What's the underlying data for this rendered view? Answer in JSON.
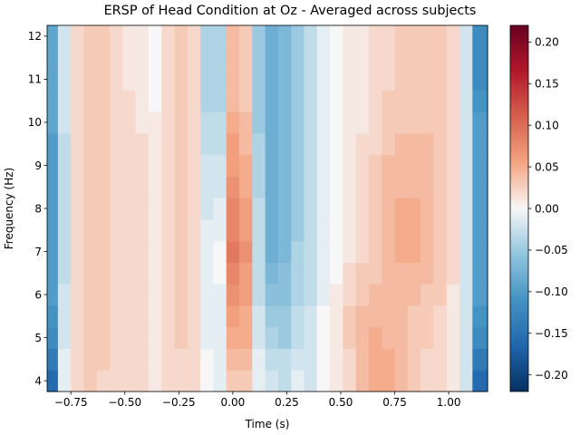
{
  "chart_data": {
    "type": "heatmap",
    "title": "ERSP of Head Condition at Oz - Averaged across subjects",
    "xlabel": "Time (s)",
    "ylabel": "Frequency (Hz)",
    "xlim": [
      -0.86,
      1.18
    ],
    "ylim": [
      3.75,
      12.25
    ],
    "x_ticks": [
      -0.75,
      -0.5,
      -0.25,
      0.0,
      0.25,
      0.5,
      0.75,
      1.0
    ],
    "x_tick_labels": [
      "−0.75",
      "−0.50",
      "−0.25",
      "0.00",
      "0.25",
      "0.50",
      "0.75",
      "1.00"
    ],
    "y_ticks": [
      4,
      5,
      6,
      7,
      8,
      9,
      10,
      11,
      12
    ],
    "y_tick_labels": [
      "4",
      "5",
      "6",
      "7",
      "8",
      "9",
      "10",
      "11",
      "12"
    ],
    "colorbar": {
      "colormap": "RdBu_r",
      "vmin": -0.22,
      "vmax": 0.22,
      "ticks": [
        -0.2,
        -0.15,
        -0.1,
        -0.05,
        0.0,
        0.05,
        0.1,
        0.15,
        0.2
      ],
      "tick_labels": [
        "−0.20",
        "−0.15",
        "−0.10",
        "−0.05",
        "0.00",
        "0.05",
        "0.10",
        "0.15",
        "0.20"
      ]
    },
    "frequencies": [
      4,
      4.5,
      5,
      5.5,
      6,
      6.5,
      7,
      7.5,
      8,
      8.5,
      9,
      9.5,
      10,
      10.5,
      11,
      11.5,
      12
    ],
    "times": [
      -0.84,
      -0.78,
      -0.72,
      -0.66,
      -0.6,
      -0.54,
      -0.48,
      -0.42,
      -0.36,
      -0.3,
      -0.24,
      -0.18,
      -0.12,
      -0.06,
      0.0,
      0.06,
      0.12,
      0.18,
      0.24,
      0.3,
      0.36,
      0.42,
      0.48,
      0.54,
      0.6,
      0.66,
      0.72,
      0.78,
      0.84,
      0.9,
      0.96,
      1.02,
      1.08,
      1.14
    ],
    "values": [
      [
        -0.16,
        -0.01,
        0.02,
        0.03,
        0.02,
        0.02,
        0.02,
        0.02,
        0.01,
        0.02,
        0.02,
        0.02,
        0.0,
        -0.01,
        0.03,
        0.03,
        -0.01,
        -0.02,
        -0.03,
        -0.01,
        -0.02,
        0.0,
        0.01,
        0.02,
        0.04,
        0.05,
        0.05,
        0.04,
        0.03,
        0.02,
        0.02,
        0.01,
        -0.02,
        -0.16
      ],
      [
        -0.14,
        -0.01,
        0.02,
        0.03,
        0.03,
        0.02,
        0.02,
        0.02,
        0.01,
        0.02,
        0.02,
        0.02,
        0.0,
        -0.01,
        0.04,
        0.04,
        -0.01,
        -0.03,
        -0.03,
        -0.02,
        -0.02,
        0.0,
        0.01,
        0.02,
        0.04,
        0.05,
        0.05,
        0.04,
        0.03,
        0.02,
        0.02,
        0.01,
        -0.02,
        -0.14
      ],
      [
        -0.12,
        -0.02,
        0.02,
        0.03,
        0.03,
        0.02,
        0.02,
        0.02,
        0.01,
        0.02,
        0.03,
        0.02,
        -0.01,
        -0.01,
        0.05,
        0.05,
        -0.02,
        -0.04,
        -0.05,
        -0.03,
        -0.02,
        0.0,
        0.01,
        0.03,
        0.04,
        0.05,
        0.04,
        0.04,
        0.03,
        0.03,
        0.02,
        0.01,
        -0.02,
        -0.12
      ],
      [
        -0.11,
        -0.02,
        0.02,
        0.03,
        0.03,
        0.02,
        0.02,
        0.02,
        0.01,
        0.02,
        0.03,
        0.02,
        -0.01,
        -0.01,
        0.06,
        0.05,
        -0.02,
        -0.05,
        -0.05,
        -0.03,
        -0.02,
        0.0,
        0.01,
        0.03,
        0.04,
        0.04,
        0.04,
        0.04,
        0.03,
        0.03,
        0.02,
        0.01,
        -0.02,
        -0.11
      ],
      [
        -0.1,
        -0.02,
        0.02,
        0.03,
        0.03,
        0.02,
        0.02,
        0.02,
        0.01,
        0.02,
        0.03,
        0.02,
        -0.01,
        -0.01,
        0.07,
        0.06,
        -0.03,
        -0.06,
        -0.06,
        -0.04,
        -0.03,
        -0.01,
        0.01,
        0.02,
        0.03,
        0.04,
        0.04,
        0.04,
        0.04,
        0.03,
        0.03,
        0.01,
        -0.02,
        -0.1
      ],
      [
        -0.1,
        -0.03,
        0.02,
        0.03,
        0.03,
        0.02,
        0.02,
        0.02,
        0.01,
        0.02,
        0.03,
        0.02,
        -0.01,
        0.0,
        0.08,
        0.06,
        -0.03,
        -0.07,
        -0.06,
        -0.04,
        -0.03,
        -0.01,
        0.0,
        0.02,
        0.03,
        0.03,
        0.04,
        0.04,
        0.04,
        0.04,
        0.03,
        0.02,
        -0.02,
        -0.1
      ],
      [
        -0.1,
        -0.03,
        0.02,
        0.03,
        0.03,
        0.02,
        0.02,
        0.02,
        0.01,
        0.02,
        0.03,
        0.02,
        -0.01,
        0.0,
        0.09,
        0.07,
        -0.03,
        -0.08,
        -0.07,
        -0.04,
        -0.03,
        -0.01,
        0.0,
        0.01,
        0.02,
        0.03,
        0.04,
        0.05,
        0.05,
        0.04,
        0.03,
        0.02,
        -0.02,
        -0.1
      ],
      [
        -0.1,
        -0.03,
        0.02,
        0.03,
        0.03,
        0.02,
        0.02,
        0.02,
        0.01,
        0.02,
        0.03,
        0.02,
        -0.01,
        -0.01,
        0.08,
        0.06,
        -0.03,
        -0.08,
        -0.07,
        -0.05,
        -0.03,
        -0.01,
        0.0,
        0.01,
        0.02,
        0.03,
        0.04,
        0.05,
        0.05,
        0.04,
        0.03,
        0.02,
        -0.02,
        -0.1
      ],
      [
        -0.1,
        -0.03,
        0.02,
        0.03,
        0.03,
        0.02,
        0.02,
        0.02,
        0.01,
        0.02,
        0.03,
        0.02,
        -0.02,
        -0.01,
        0.08,
        0.06,
        -0.03,
        -0.08,
        -0.07,
        -0.05,
        -0.03,
        -0.01,
        0.0,
        0.01,
        0.02,
        0.03,
        0.04,
        0.05,
        0.05,
        0.04,
        0.03,
        0.02,
        -0.02,
        -0.1
      ],
      [
        -0.1,
        -0.03,
        0.02,
        0.03,
        0.03,
        0.02,
        0.02,
        0.02,
        0.01,
        0.02,
        0.03,
        0.02,
        -0.02,
        -0.02,
        0.07,
        0.05,
        -0.04,
        -0.08,
        -0.07,
        -0.05,
        -0.03,
        -0.01,
        0.0,
        0.01,
        0.02,
        0.03,
        0.04,
        0.04,
        0.04,
        0.04,
        0.03,
        0.02,
        -0.02,
        -0.1
      ],
      [
        -0.1,
        -0.03,
        0.02,
        0.03,
        0.03,
        0.02,
        0.02,
        0.02,
        0.01,
        0.02,
        0.03,
        0.02,
        -0.02,
        -0.02,
        0.06,
        0.05,
        -0.04,
        -0.08,
        -0.07,
        -0.05,
        -0.03,
        -0.01,
        0.0,
        0.01,
        0.02,
        0.03,
        0.04,
        0.04,
        0.04,
        0.04,
        0.03,
        0.02,
        -0.02,
        -0.1
      ],
      [
        -0.1,
        -0.03,
        0.02,
        0.03,
        0.03,
        0.02,
        0.02,
        0.02,
        0.01,
        0.02,
        0.03,
        0.02,
        -0.03,
        -0.03,
        0.06,
        0.04,
        -0.04,
        -0.08,
        -0.07,
        -0.05,
        -0.03,
        -0.01,
        0.0,
        0.01,
        0.02,
        0.02,
        0.03,
        0.04,
        0.04,
        0.04,
        0.03,
        0.02,
        -0.02,
        -0.1
      ],
      [
        -0.09,
        -0.02,
        0.02,
        0.03,
        0.03,
        0.02,
        0.02,
        0.01,
        0.01,
        0.02,
        0.03,
        0.02,
        -0.03,
        -0.03,
        0.05,
        0.04,
        -0.05,
        -0.08,
        -0.07,
        -0.05,
        -0.03,
        -0.01,
        0.0,
        0.01,
        0.01,
        0.02,
        0.03,
        0.03,
        0.03,
        0.03,
        0.03,
        0.02,
        -0.02,
        -0.1
      ],
      [
        -0.09,
        -0.02,
        0.02,
        0.03,
        0.03,
        0.02,
        0.02,
        0.01,
        0.0,
        0.02,
        0.03,
        0.02,
        -0.04,
        -0.04,
        0.04,
        0.03,
        -0.05,
        -0.08,
        -0.07,
        -0.05,
        -0.03,
        -0.01,
        0.0,
        0.01,
        0.01,
        0.02,
        0.03,
        0.03,
        0.03,
        0.03,
        0.03,
        0.02,
        -0.02,
        -0.11
      ],
      [
        -0.09,
        -0.02,
        0.02,
        0.03,
        0.03,
        0.02,
        0.01,
        0.01,
        0.0,
        0.02,
        0.03,
        0.02,
        -0.04,
        -0.04,
        0.04,
        0.03,
        -0.05,
        -0.08,
        -0.07,
        -0.05,
        -0.03,
        -0.01,
        0.0,
        0.01,
        0.01,
        0.02,
        0.02,
        0.03,
        0.03,
        0.03,
        0.03,
        0.02,
        -0.02,
        -0.12
      ],
      [
        -0.09,
        -0.02,
        0.02,
        0.03,
        0.03,
        0.02,
        0.01,
        0.01,
        0.0,
        0.02,
        0.03,
        0.02,
        -0.04,
        -0.04,
        0.04,
        0.03,
        -0.05,
        -0.08,
        -0.07,
        -0.05,
        -0.03,
        -0.01,
        0.0,
        0.01,
        0.01,
        0.02,
        0.02,
        0.03,
        0.03,
        0.03,
        0.03,
        0.02,
        -0.02,
        -0.12
      ],
      [
        -0.09,
        -0.02,
        0.02,
        0.03,
        0.03,
        0.02,
        0.01,
        0.01,
        0.0,
        0.02,
        0.03,
        0.02,
        -0.04,
        -0.04,
        0.04,
        0.03,
        -0.05,
        -0.08,
        -0.07,
        -0.05,
        -0.03,
        -0.01,
        0.0,
        0.01,
        0.01,
        0.02,
        0.02,
        0.03,
        0.03,
        0.03,
        0.03,
        0.02,
        -0.02,
        -0.12
      ]
    ]
  }
}
